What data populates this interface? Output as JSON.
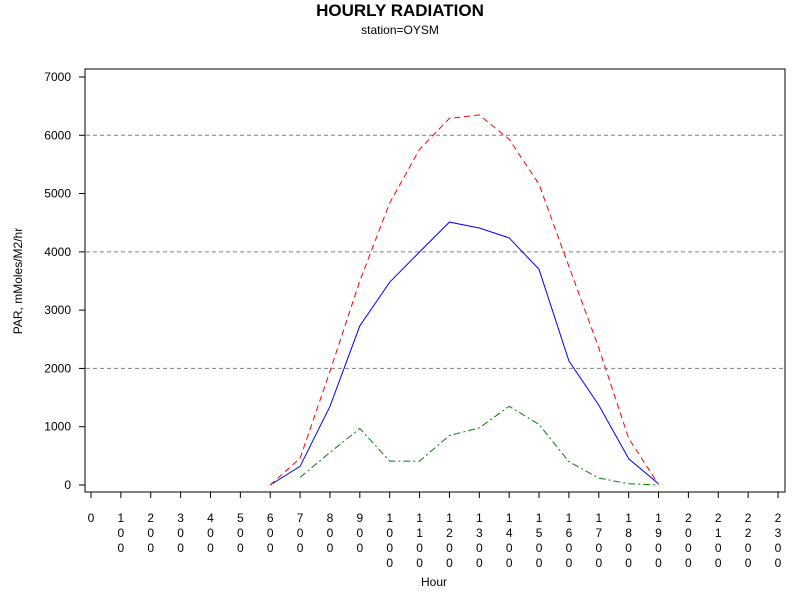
{
  "chart_data": {
    "type": "line",
    "title": "HOURLY RADIATION",
    "subtitle": "station=OYSM",
    "xlabel": "Hour",
    "ylabel": "PAR, mMoles/M2/hr",
    "x_ticks": [
      "0",
      "100",
      "200",
      "300",
      "400",
      "500",
      "600",
      "700",
      "800",
      "900",
      "1000",
      "1100",
      "1200",
      "1300",
      "1400",
      "1500",
      "1600",
      "1700",
      "1800",
      "1900",
      "2000",
      "2100",
      "2200",
      "2300"
    ],
    "xlim": [
      0,
      2300
    ],
    "ylim": [
      0,
      7000
    ],
    "y_ticks": [
      0,
      1000,
      2000,
      3000,
      4000,
      5000,
      6000,
      7000
    ],
    "y_gridlines": [
      2000,
      4000,
      6000
    ],
    "grid": "horizontal dashed at 2000, 4000, 6000",
    "legend": "none",
    "series": [
      {
        "color": "#0000ff",
        "style": "solid",
        "x": [
          600,
          700,
          800,
          900,
          1000,
          1100,
          1200,
          1300,
          1400,
          1500,
          1600,
          1700,
          1800,
          1900
        ],
        "values": [
          0,
          320,
          1350,
          2730,
          3480,
          4000,
          4510,
          4410,
          4240,
          3700,
          2130,
          1370,
          450,
          20
        ]
      },
      {
        "color": "#ff0000",
        "style": "dashed",
        "x": [
          600,
          700,
          800,
          900,
          1000,
          1100,
          1200,
          1300,
          1400,
          1500,
          1600,
          1700,
          1800,
          1900
        ],
        "values": [
          0,
          460,
          1950,
          3500,
          4840,
          5760,
          6290,
          6350,
          5930,
          5160,
          3750,
          2350,
          800,
          10
        ]
      },
      {
        "color": "#008000",
        "style": "dashdot",
        "x": [
          700,
          800,
          900,
          1000,
          1100,
          1200,
          1300,
          1400,
          1500,
          1600,
          1700,
          1800,
          1900
        ],
        "values": [
          130,
          560,
          970,
          410,
          410,
          850,
          980,
          1350,
          1040,
          400,
          120,
          20,
          0
        ]
      }
    ]
  }
}
